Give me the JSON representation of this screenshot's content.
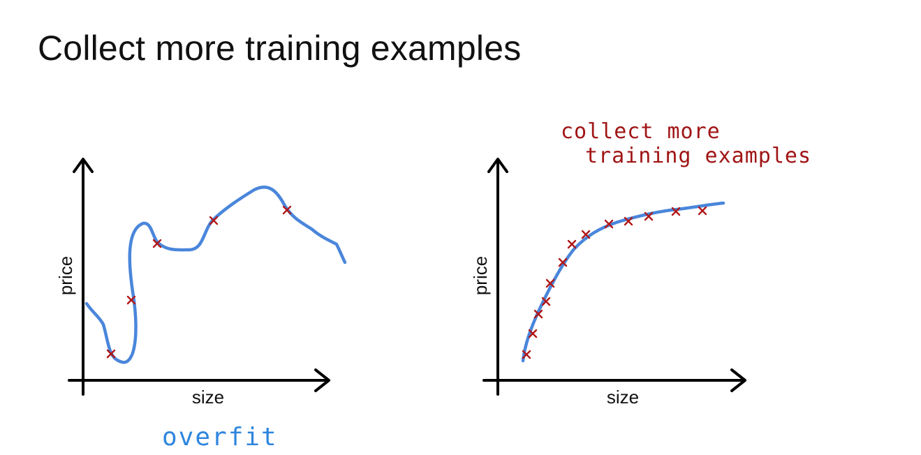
{
  "title": "Collect more training examples",
  "colors": {
    "curve": "#4a86db",
    "marks": "#b01818",
    "note_red": "#a01515",
    "note_blue": "#2f86dd",
    "axis": "#000000"
  },
  "panels": [
    {
      "x_axis_label": "size",
      "y_axis_label": "price",
      "note": "overfit"
    },
    {
      "x_axis_label": "size",
      "y_axis_label": "price",
      "note_line1": "collect more",
      "note_line2": "training examples"
    }
  ]
}
